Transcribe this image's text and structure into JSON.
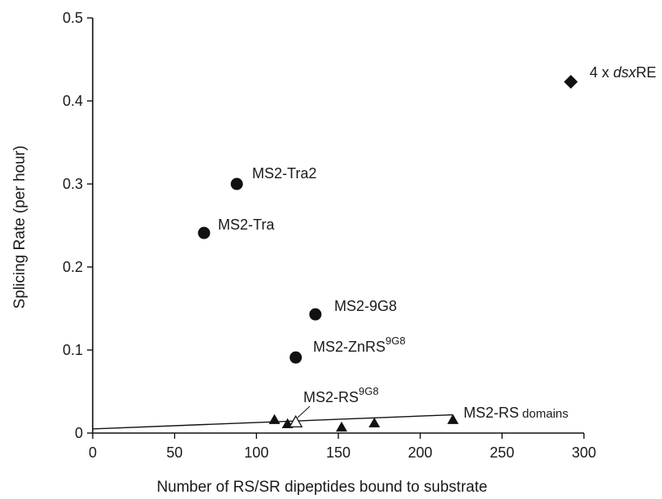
{
  "chart_data": {
    "type": "scatter",
    "title": "",
    "xlabel": "Number of RS/SR dipeptides bound to substrate",
    "ylabel": "Splicing Rate (per hour)",
    "xlim": [
      0,
      300
    ],
    "ylim": [
      0,
      0.5
    ],
    "xticks": [
      "0",
      "50",
      "100",
      "150",
      "200",
      "250",
      "300"
    ],
    "yticks": [
      "0",
      "0.1",
      "0.2",
      "0.3",
      "0.4",
      "0.5"
    ],
    "grid": false,
    "legend": "none",
    "colors": {
      "marker": "#111111",
      "line": "#111111",
      "hollow_fill": "#ffffff"
    },
    "series": [
      {
        "marker": "diamond",
        "points": [
          {
            "x": 292,
            "y": 0.423,
            "label": "4 x dsxRE"
          }
        ]
      },
      {
        "marker": "circle",
        "points": [
          {
            "x": 88,
            "y": 0.3,
            "label": "MS2-Tra2"
          },
          {
            "x": 68,
            "y": 0.241,
            "label": "MS2-Tra"
          },
          {
            "x": 136,
            "y": 0.143,
            "label": "MS2-9G8"
          },
          {
            "x": 124,
            "y": 0.091,
            "label": "MS2-ZnRS9G8"
          }
        ]
      },
      {
        "marker": "triangle",
        "points": [
          {
            "x": 111,
            "y": 0.016
          },
          {
            "x": 119,
            "y": 0.011
          },
          {
            "x": 152,
            "y": 0.007
          },
          {
            "x": 172,
            "y": 0.012
          },
          {
            "x": 220,
            "y": 0.016
          }
        ]
      },
      {
        "marker": "triangle-open",
        "points": [
          {
            "x": 124,
            "y": 0.013,
            "label": "MS2-RS9G8"
          }
        ]
      }
    ],
    "trendline": {
      "from": [
        0,
        0.005
      ],
      "to": [
        220,
        0.022
      ],
      "label": "MS2-RS domains"
    },
    "labels": {
      "dsx_prefix": "4 x ",
      "dsx_italic": "dsx",
      "dsx_suffix": "RE",
      "tra2": "MS2-Tra2",
      "tra": "MS2-Tra",
      "g98": "MS2-9G8",
      "znrs_main": "MS2-ZnRS",
      "znrs_sup": "9G8",
      "rs_main": "MS2-RS",
      "rs_sup": "9G8",
      "rsdomains_main": "MS2-RS",
      "rsdomains_small": " domains"
    }
  }
}
